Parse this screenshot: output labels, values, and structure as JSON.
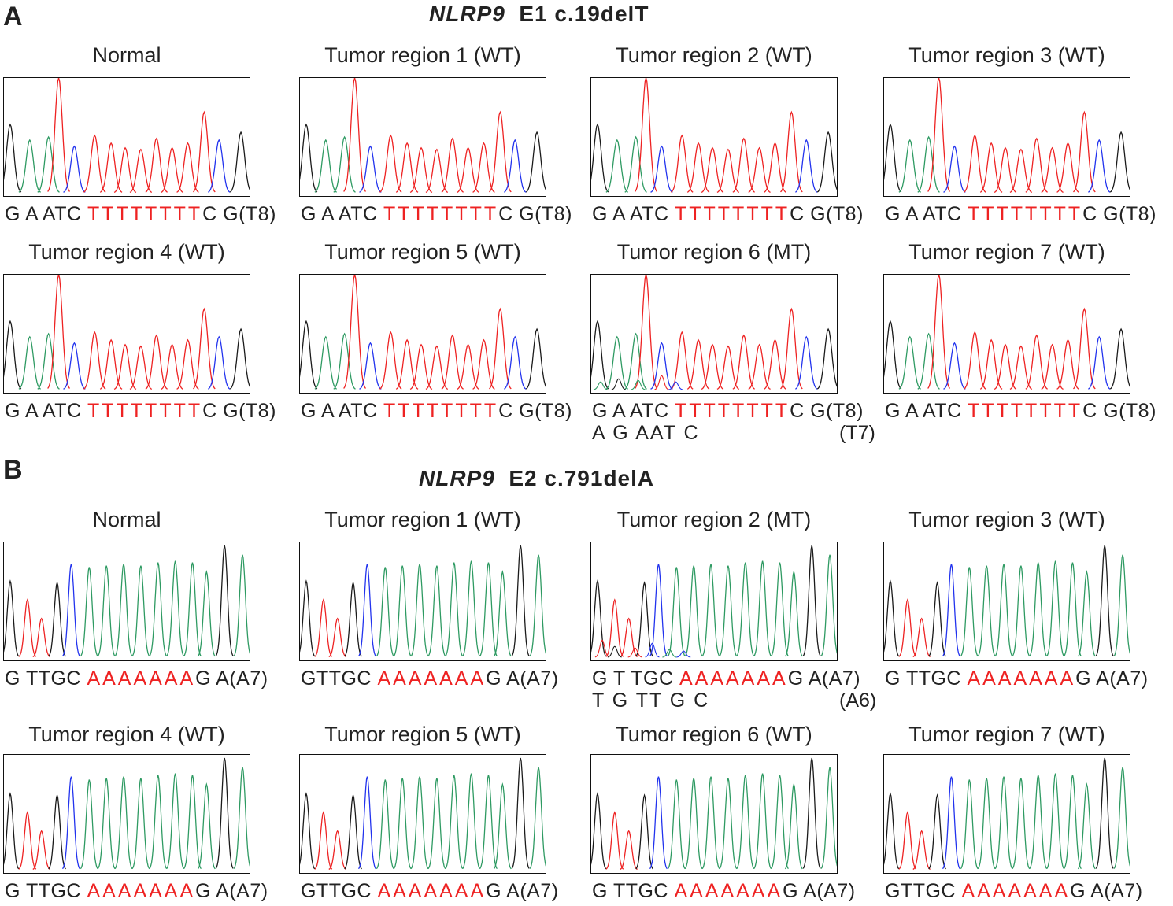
{
  "panel_a": {
    "letter": "A",
    "gene": "NLRP9",
    "mutation": "E1 c.19delT",
    "cells": [
      {
        "title": "Normal",
        "seq_prefix": "G A ATC ",
        "seq_red": "TTTTTTTT",
        "seq_suffix": "C G(T8)"
      },
      {
        "title": "Tumor region 1  (WT)",
        "seq_prefix": "G A ATC ",
        "seq_red": "TTTTTTTT",
        "seq_suffix": "C G(T8)"
      },
      {
        "title": "Tumor region 2 (WT)",
        "seq_prefix": "G A ATC ",
        "seq_red": "TTTTTTTT",
        "seq_suffix": "C G(T8)"
      },
      {
        "title": "Tumor  region 3 (WT)",
        "seq_prefix": "G A ATC ",
        "seq_red": "TTTTTTTT",
        "seq_suffix": "C G(T8)"
      },
      {
        "title": "Tumor region 4 (WT)",
        "seq_prefix": "G A ATC ",
        "seq_red": "TTTTTTTT",
        "seq_suffix": "C G(T8)"
      },
      {
        "title": "Tumor region 5 (WT)",
        "seq_prefix": "G A ATC ",
        "seq_red": "TTTTTTTT",
        "seq_suffix": "C G(T8)"
      },
      {
        "title": "Tumor region 6 (MT)",
        "seq_prefix": "G A ATC ",
        "seq_red": "TTTTTTTT",
        "seq_suffix": "C G(T8)",
        "seq_second": "A G AAT C",
        "second_note": "(T7)"
      },
      {
        "title": "Tumor region 7 (WT)",
        "seq_prefix": "G A ATC ",
        "seq_red": "TTTTTTTT",
        "seq_suffix": "C G(T8)"
      }
    ]
  },
  "panel_b": {
    "letter": "B",
    "gene": "NLRP9",
    "mutation": "E2 c.791delA",
    "cells": [
      {
        "title": "Normal",
        "seq_prefix": "G TTGC ",
        "seq_red": "AAAAAAA",
        "seq_suffix": "G A(A7)"
      },
      {
        "title": "Tumor region 1  (WT)",
        "seq_prefix": "GTTGC ",
        "seq_red": "AAAAAAA",
        "seq_suffix": "G A(A7)"
      },
      {
        "title": "Tumor region 2  (MT)",
        "seq_prefix": "G T TGC ",
        "seq_red": "AAAAAAA",
        "seq_suffix": "G A(A7)",
        "seq_second": "T G TT G C",
        "second_note": "(A6)"
      },
      {
        "title": "Tumor region 3 (WT)",
        "seq_prefix": "G TTGC ",
        "seq_red": "AAAAAAA",
        "seq_suffix": "G A(A7)"
      },
      {
        "title": "Tumor region 4   (WT)",
        "seq_prefix": "G TTGC ",
        "seq_red": "AAAAAAA",
        "seq_suffix": "G A(A7)"
      },
      {
        "title": "Tumor region 5  (WT)",
        "seq_prefix": "GTTGC ",
        "seq_red": "AAAAAAA",
        "seq_suffix": "G A(A7)"
      },
      {
        "title": "Tumor region 6  (WT)",
        "seq_prefix": "G TTGC ",
        "seq_red": "AAAAAAA",
        "seq_suffix": "G A(A7)"
      },
      {
        "title": "Tumor region 7  (WT)",
        "seq_prefix": "GTTGC ",
        "seq_red": "AAAAAAA",
        "seq_suffix": "G A(A7)"
      }
    ]
  },
  "colors": {
    "base_g": "#1a1a1a",
    "base_a": "#2e9a62",
    "base_t": "#ee2222",
    "base_c": "#2233ee",
    "highlight": "#ee2222"
  }
}
